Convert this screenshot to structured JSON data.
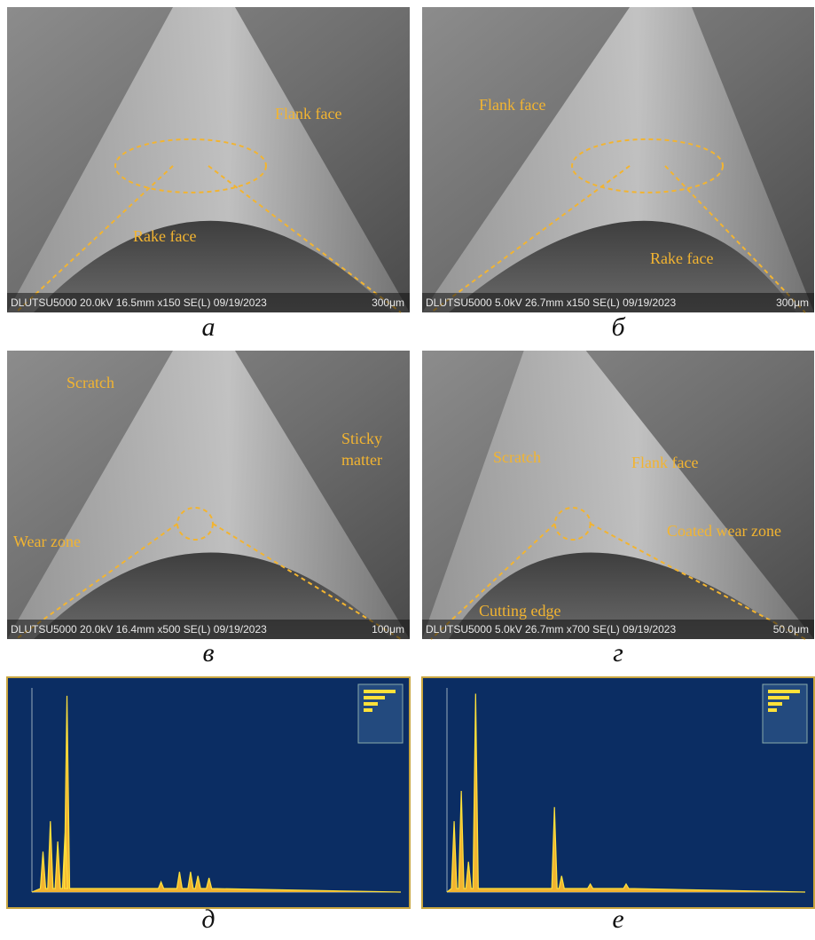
{
  "panels": [
    {
      "label": "а",
      "info": "DLUTSU5000 20.0kV 16.5mm x150 SE(L) 09/19/2023",
      "scale": "300μm",
      "annotations": [
        "Flank face",
        "Rake face"
      ]
    },
    {
      "label": "б",
      "info": "DLUTSU5000 5.0kV 26.7mm x150 SE(L) 09/19/2023",
      "scale": "300μm",
      "annotations": [
        "Flank face",
        "Rake face"
      ]
    },
    {
      "label": "в",
      "info": "DLUTSU5000 20.0kV 16.4mm x500 SE(L) 09/19/2023",
      "scale": "100μm",
      "annotations": [
        "Scratch",
        "Sticky",
        "matter",
        "Wear zone"
      ]
    },
    {
      "label": "г",
      "info": "DLUTSU5000 5.0kV 26.7mm x700 SE(L) 09/19/2023",
      "scale": "50.0μm",
      "annotations": [
        "Scratch",
        "Flank face",
        "Coated wear zone",
        "Cutting edge"
      ]
    },
    {
      "label": "д"
    },
    {
      "label": "е"
    }
  ]
}
